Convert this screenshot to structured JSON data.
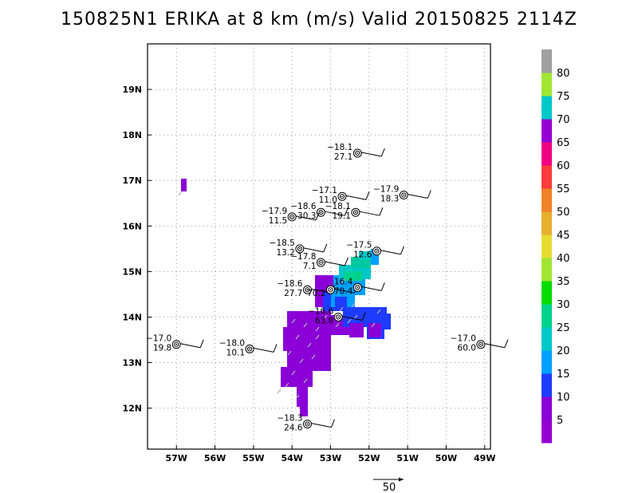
{
  "title": "150825N1 ERIKA at 8 km (m/s) Valid 20150825 2114Z",
  "map": {
    "lon_range": [
      -57.75,
      -48.85
    ],
    "lat_range": [
      11.1,
      20.0
    ],
    "lon_ticks": [
      {
        "v": -57,
        "label": "57W"
      },
      {
        "v": -56,
        "label": "56W"
      },
      {
        "v": -55,
        "label": "55W"
      },
      {
        "v": -54,
        "label": "54W"
      },
      {
        "v": -53,
        "label": "53W"
      },
      {
        "v": -52,
        "label": "52W"
      },
      {
        "v": -51,
        "label": "51W"
      },
      {
        "v": -50,
        "label": "50W"
      },
      {
        "v": -49,
        "label": "49W"
      }
    ],
    "lat_ticks": [
      {
        "v": 12,
        "label": "12N"
      },
      {
        "v": 13,
        "label": "13N"
      },
      {
        "v": 14,
        "label": "14N"
      },
      {
        "v": 15,
        "label": "15N"
      },
      {
        "v": 16,
        "label": "16N"
      },
      {
        "v": 17,
        "label": "17N"
      },
      {
        "v": 18,
        "label": "18N"
      },
      {
        "v": 19,
        "label": "19N"
      }
    ],
    "grid": "dotted"
  },
  "colorbar": {
    "colors": [
      "#9400d3",
      "#8a00d6",
      "#1e3cff",
      "#00a0ff",
      "#00c8c8",
      "#00d28c",
      "#00dc00",
      "#a0e632",
      "#e6dc32",
      "#e6af2d",
      "#f08228",
      "#fa3c3c",
      "#f00082",
      "#9400d3",
      "#00c8c8",
      "#a0e632",
      "#a0a0a0"
    ],
    "labels": [
      "5",
      "10",
      "15",
      "20",
      "25",
      "30",
      "35",
      "40",
      "45",
      "50",
      "55",
      "60",
      "65",
      "70",
      "75",
      "80"
    ]
  },
  "reference_vector": {
    "label": "50"
  },
  "observations": [
    {
      "lon": -52.3,
      "lat": 17.6,
      "top": "−18.1",
      "bottom": "27.1"
    },
    {
      "lon": -52.7,
      "lat": 16.65,
      "top": "−17.1",
      "bottom": "11.0"
    },
    {
      "lon": -51.1,
      "lat": 16.68,
      "top": "−17.9",
      "bottom": "18.3"
    },
    {
      "lon": -53.25,
      "lat": 16.3,
      "top": "−18.6",
      "bottom": "30.3"
    },
    {
      "lon": -52.35,
      "lat": 16.3,
      "top": "−18.1",
      "bottom": "19.1"
    },
    {
      "lon": -54.0,
      "lat": 16.2,
      "top": "−17.9",
      "bottom": "11.5"
    },
    {
      "lon": -53.8,
      "lat": 15.5,
      "top": "−18.5",
      "bottom": "13.2"
    },
    {
      "lon": -51.8,
      "lat": 15.45,
      "top": "−17.5",
      "bottom": "12.6"
    },
    {
      "lon": -53.25,
      "lat": 15.2,
      "top": "−17.8",
      "bottom": "7.1"
    },
    {
      "lon": -53.6,
      "lat": 14.6,
      "top": "−18.6",
      "bottom": "27.7"
    },
    {
      "lon": -53.0,
      "lat": 14.6,
      "top": "",
      "bottom": "70.2"
    },
    {
      "lon": -52.3,
      "lat": 14.65,
      "top": "16.4",
      "bottom": "70.4"
    },
    {
      "lon": -52.8,
      "lat": 14.0,
      "top": "−16.6",
      "bottom": "63.8"
    },
    {
      "lon": -57.0,
      "lat": 13.4,
      "top": "−17.0",
      "bottom": "19.8"
    },
    {
      "lon": -55.1,
      "lat": 13.3,
      "top": "−18.0",
      "bottom": "10.1"
    },
    {
      "lon": -49.1,
      "lat": 13.4,
      "top": "−17.0",
      "bottom": "60.0"
    },
    {
      "lon": -53.6,
      "lat": 11.65,
      "top": "−18.3",
      "bottom": "24.6"
    }
  ]
}
